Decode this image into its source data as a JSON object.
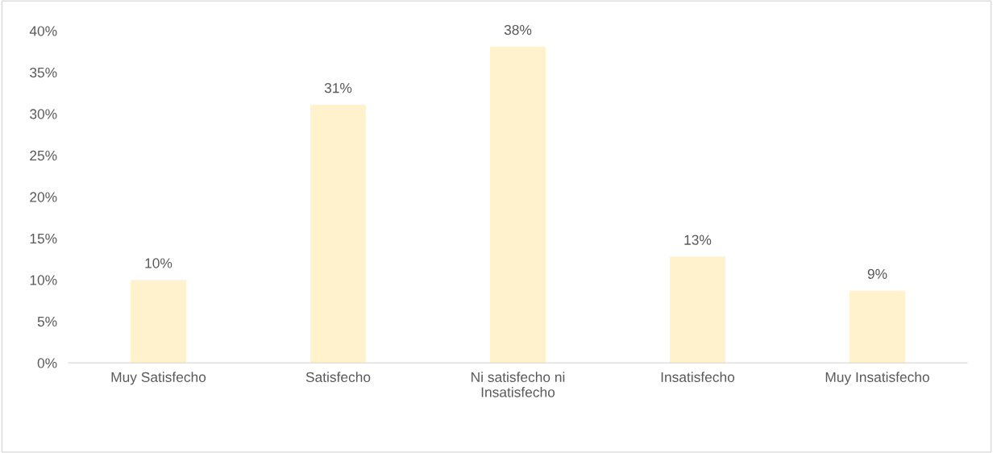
{
  "chart_data": {
    "type": "bar",
    "categories": [
      "Muy Satisfecho",
      "Satisfecho",
      "Ni satisfecho ni\nInsatisfecho",
      "Insatisfecho",
      "Muy Insatisfecho"
    ],
    "values": [
      10,
      31.1,
      38.1,
      12.8,
      8.7
    ],
    "value_labels": [
      "10%",
      "31%",
      "38%",
      "13%",
      "9%"
    ],
    "color": "#fff2cc",
    "ylim": [
      0,
      40
    ],
    "yticks": [
      {
        "value": 0,
        "label": "0%"
      },
      {
        "value": 5,
        "label": "5%"
      },
      {
        "value": 10,
        "label": "10%"
      },
      {
        "value": 15,
        "label": "15%"
      },
      {
        "value": 20,
        "label": "20%"
      },
      {
        "value": 25,
        "label": "25%"
      },
      {
        "value": 30,
        "label": "30%"
      },
      {
        "value": 35,
        "label": "35%"
      },
      {
        "value": 40,
        "label": "40%"
      }
    ],
    "grid": false,
    "legend": false
  }
}
